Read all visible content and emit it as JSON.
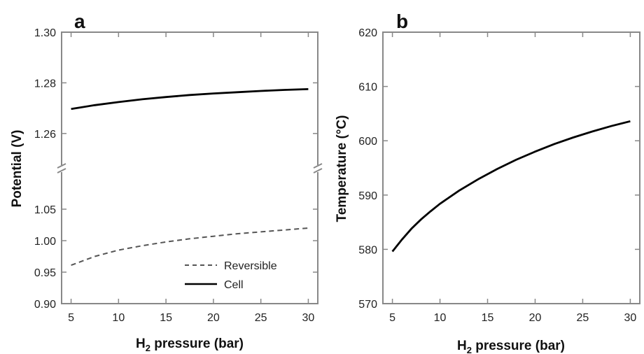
{
  "chart_data": [
    {
      "type": "line",
      "panel_label": "a",
      "xlabel_main": "H",
      "xlabel_sub": "2",
      "xlabel_rest": " pressure (bar)",
      "ylabel": "Potential (V)",
      "xlim": [
        4,
        31
      ],
      "xticks": [
        5,
        10,
        15,
        20,
        25,
        30
      ],
      "y_break": true,
      "y_upper": {
        "ylim": [
          1.25,
          1.3
        ],
        "yticks": [
          "1.26",
          "1.28",
          "1.30"
        ]
      },
      "y_lower": {
        "ylim": [
          0.9,
          1.1
        ],
        "yticks": [
          "0.90",
          "0.95",
          "1.00",
          "1.05"
        ]
      },
      "legend_position": "bottom-right",
      "series": [
        {
          "name": "Reversible",
          "style": "dashed",
          "color": "#555555",
          "segment": "lower",
          "x": [
            5,
            7.5,
            10,
            12.5,
            15,
            17.5,
            20,
            22.5,
            25,
            27.5,
            30
          ],
          "y": [
            0.961,
            0.975,
            0.985,
            0.992,
            0.998,
            1.003,
            1.007,
            1.011,
            1.014,
            1.017,
            1.02
          ]
        },
        {
          "name": "Cell",
          "style": "solid",
          "color": "#000000",
          "segment": "upper",
          "x": [
            5,
            7.5,
            10,
            12.5,
            15,
            17.5,
            20,
            22.5,
            25,
            27.5,
            30
          ],
          "y": [
            1.2697,
            1.2712,
            1.2724,
            1.2735,
            1.2744,
            1.2752,
            1.2758,
            1.2763,
            1.2768,
            1.2772,
            1.2775
          ]
        }
      ]
    },
    {
      "type": "line",
      "panel_label": "b",
      "xlabel_main": "H",
      "xlabel_sub": "2",
      "xlabel_rest": " pressure (bar)",
      "ylabel": "Temperature (°C)",
      "xlim": [
        4,
        31
      ],
      "xticks": [
        5,
        10,
        15,
        20,
        25,
        30
      ],
      "ylim": [
        570,
        620
      ],
      "yticks": [
        570,
        580,
        590,
        600,
        610,
        620
      ],
      "series": [
        {
          "color": "#000000",
          "style": "solid",
          "x": [
            5,
            6,
            7,
            8,
            9,
            10,
            12,
            14,
            16,
            18,
            20,
            22,
            24,
            26,
            28,
            30
          ],
          "y": [
            579.6,
            581.8,
            583.8,
            585.5,
            587.0,
            588.4,
            590.8,
            592.9,
            594.8,
            596.5,
            598.0,
            599.4,
            600.6,
            601.7,
            602.7,
            603.6
          ]
        }
      ]
    }
  ]
}
